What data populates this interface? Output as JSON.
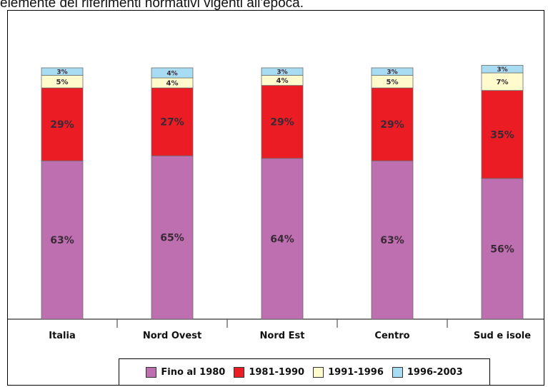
{
  "caption": "elemente dei riferimenti  normativi vigenti all'epoca.",
  "chart_data": {
    "type": "bar",
    "stacked": true,
    "categories": [
      "Italia",
      "Nord  Ovest",
      "Nord Est",
      "Centro",
      "Sud e isole"
    ],
    "series": [
      {
        "name": "Fino al 1980",
        "values": [
          63,
          65,
          64,
          63,
          56
        ],
        "labels": [
          "63%",
          "65%",
          "64%",
          "63%",
          "56%"
        ],
        "color": "#bd6fb0"
      },
      {
        "name": "1981-1990",
        "values": [
          29,
          27,
          29,
          29,
          35
        ],
        "labels": [
          "29%",
          "27%",
          "29%",
          "29%",
          "35%"
        ],
        "color": "#ec1c24"
      },
      {
        "name": "1991-1996",
        "values": [
          5,
          4,
          4,
          5,
          7
        ],
        "labels": [
          "5%",
          "4%",
          "4%",
          "5%",
          "7%"
        ],
        "color": "#fffbcc"
      },
      {
        "name": "1996-2003",
        "values": [
          3,
          4,
          3,
          3,
          3
        ],
        "labels": [
          "3%",
          "4%",
          "3%",
          "3%",
          "3%"
        ],
        "color": "#a8dcf2"
      }
    ],
    "legend_position": "bottom",
    "grid": false
  }
}
